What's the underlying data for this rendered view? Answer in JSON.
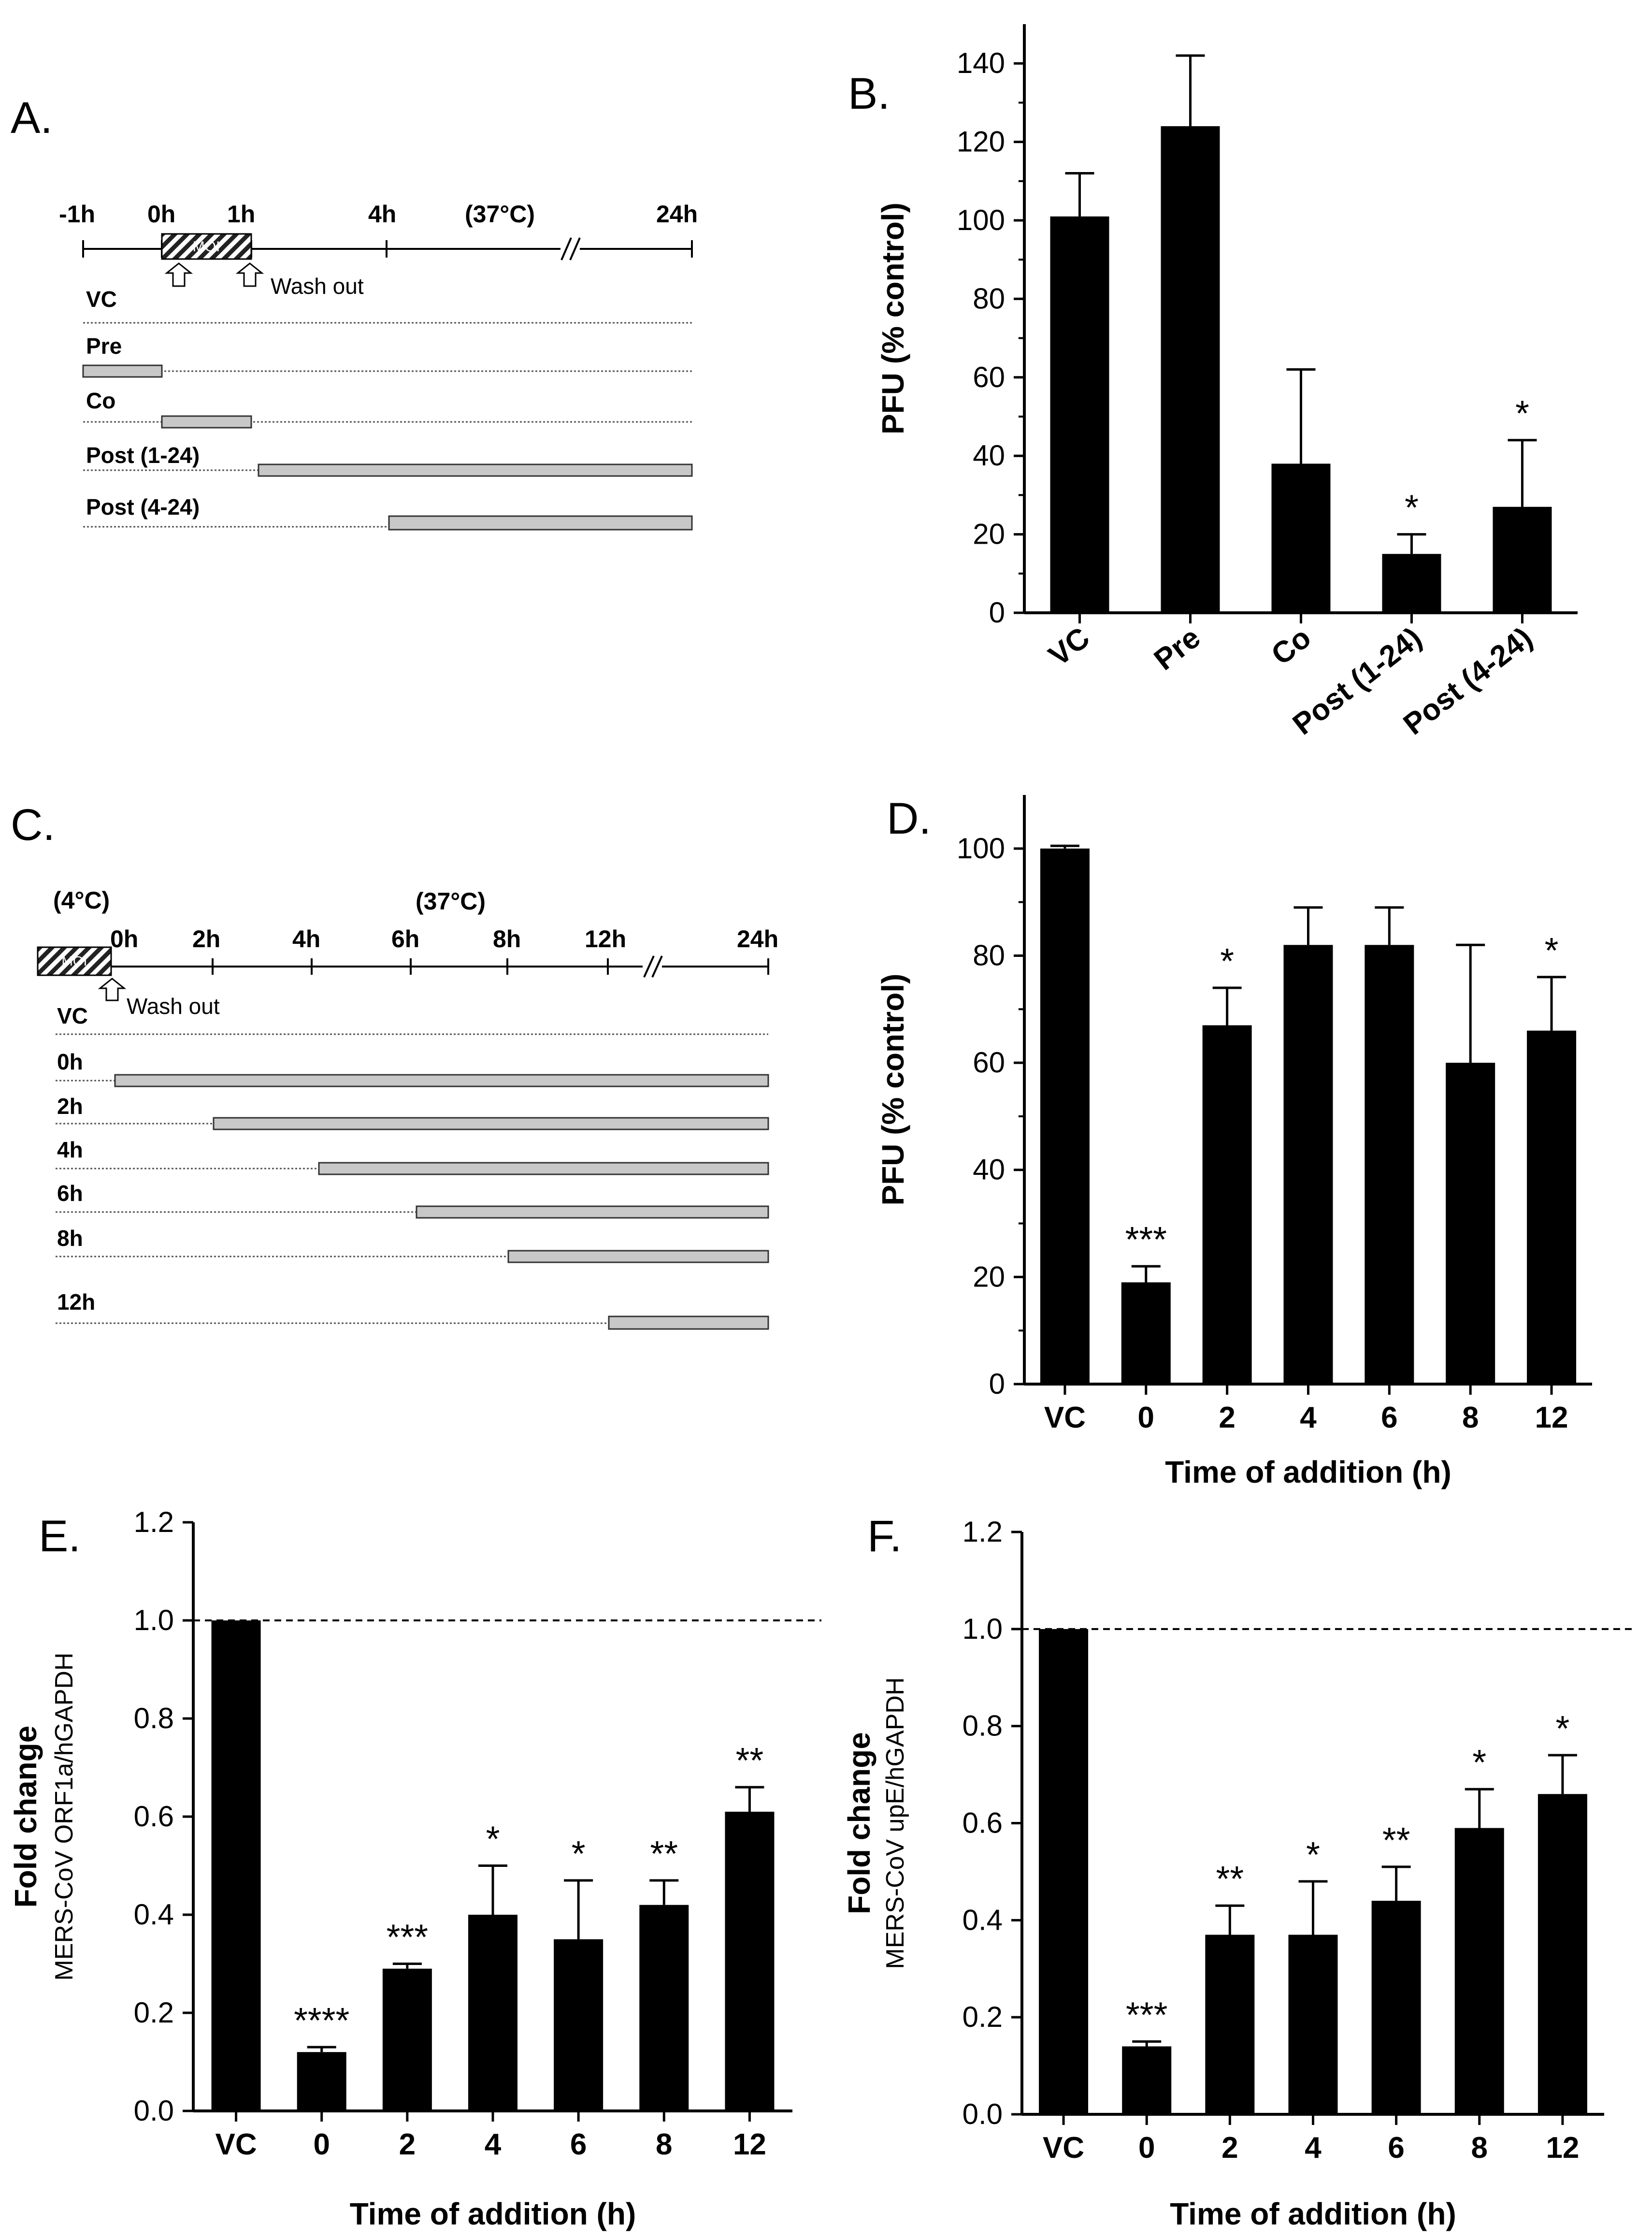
{
  "panels": {
    "A": {
      "label": "A.",
      "time_labels": [
        "-1h",
        "0h",
        "1h",
        "4h",
        "(37°C)",
        "24h"
      ],
      "treatment_label": "MOI",
      "wash_label": "Wash out",
      "rows": [
        "VC",
        "Pre",
        "Co",
        "Post (1-24)",
        "Post (4-24)"
      ]
    },
    "B": {
      "label": "B."
    },
    "C": {
      "label": "C.",
      "temp_cold": "(4°C)",
      "temp_warm": "(37°C)",
      "time_labels": [
        "0h",
        "2h",
        "4h",
        "6h",
        "8h",
        "12h",
        "24h"
      ],
      "treatment_label": "MOI",
      "wash_label": "Wash out",
      "rows": [
        "VC",
        "0h",
        "2h",
        "4h",
        "6h",
        "8h",
        "12h"
      ]
    },
    "D": {
      "label": "D."
    },
    "E": {
      "label": "E."
    },
    "F": {
      "label": "F."
    }
  },
  "colors": {
    "bar": "#000000",
    "timeline_bar": "#c8c8c8",
    "hatch": "#222222"
  },
  "chart_data": [
    {
      "id": "B",
      "type": "bar",
      "categories": [
        "VC",
        "Pre",
        "Co",
        "Post (1-24)",
        "Post (4-24)"
      ],
      "values": [
        101,
        124,
        38,
        15,
        27
      ],
      "errors": [
        11,
        18,
        24,
        5,
        17
      ],
      "significance": [
        "",
        "",
        "",
        "*",
        "*"
      ],
      "ylabel": "PFU (% control)",
      "xlabel": "",
      "ylim": [
        0,
        150
      ],
      "yticks": [
        0,
        20,
        40,
        60,
        80,
        100,
        120,
        140
      ],
      "ytick_labels": [
        "0",
        "20",
        "40",
        "60",
        "80",
        "100",
        "120",
        "140"
      ]
    },
    {
      "id": "D",
      "type": "bar",
      "categories": [
        "VC",
        "0",
        "2",
        "4",
        "6",
        "8",
        "12"
      ],
      "values": [
        100,
        19,
        67,
        82,
        82,
        60,
        66
      ],
      "errors": [
        0.5,
        3,
        7,
        7,
        7,
        22,
        10
      ],
      "significance": [
        "",
        "***",
        "*",
        "",
        "",
        "",
        "*"
      ],
      "ylabel": "PFU (% control)",
      "xlabel": "Time of addition (h)",
      "ylim": [
        0,
        110
      ],
      "yticks": [
        0,
        20,
        40,
        60,
        80,
        100
      ],
      "ytick_labels": [
        "0",
        "20",
        "40",
        "60",
        "80",
        "100"
      ]
    },
    {
      "id": "E",
      "type": "bar",
      "categories": [
        "VC",
        "0",
        "2",
        "4",
        "6",
        "8",
        "12"
      ],
      "values": [
        1.0,
        0.12,
        0.29,
        0.4,
        0.35,
        0.42,
        0.61
      ],
      "errors": [
        0,
        0.01,
        0.01,
        0.1,
        0.12,
        0.05,
        0.05
      ],
      "significance": [
        "",
        "****",
        "***",
        "*",
        "*",
        "**",
        "**"
      ],
      "ylabel": "Fold change",
      "ylabel2": "MERS-CoV ORF1a/hGAPDH",
      "xlabel": "Time of addition (h)",
      "ylim": [
        0,
        1.2
      ],
      "yticks": [
        0,
        0.2,
        0.4,
        0.6,
        0.8,
        1.0,
        1.2
      ],
      "ytick_labels": [
        "0.0",
        "0.2",
        "0.4",
        "0.6",
        "0.8",
        "1.0",
        "1.2"
      ],
      "reference_line": 1.0
    },
    {
      "id": "F",
      "type": "bar",
      "categories": [
        "VC",
        "0",
        "2",
        "4",
        "6",
        "8",
        "12"
      ],
      "values": [
        1.0,
        0.14,
        0.37,
        0.37,
        0.44,
        0.59,
        0.66
      ],
      "errors": [
        0,
        0.01,
        0.06,
        0.11,
        0.07,
        0.08,
        0.08
      ],
      "significance": [
        "",
        "***",
        "**",
        "*",
        "**",
        "*",
        "*"
      ],
      "ylabel": "Fold change",
      "ylabel2": "MERS-CoV upE/hGAPDH",
      "xlabel": "Time of addition (h)",
      "ylim": [
        0,
        1.2
      ],
      "yticks": [
        0,
        0.2,
        0.4,
        0.6,
        0.8,
        1.0,
        1.2
      ],
      "ytick_labels": [
        "0.0",
        "0.2",
        "0.4",
        "0.6",
        "0.8",
        "1.0",
        "1.2"
      ],
      "reference_line": 1.0
    }
  ]
}
